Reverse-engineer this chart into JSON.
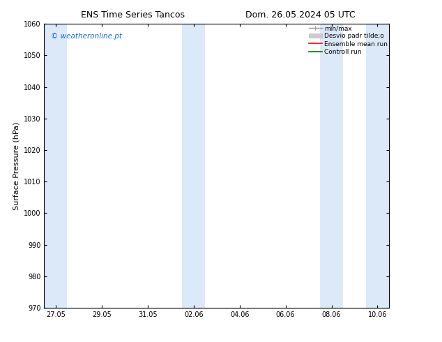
{
  "title_left": "ENS Time Series Tancos",
  "title_right": "Dom. 26.05.2024 05 UTC",
  "ylabel": "Surface Pressure (hPa)",
  "ylim": [
    970,
    1060
  ],
  "yticks": [
    970,
    980,
    990,
    1000,
    1010,
    1020,
    1030,
    1040,
    1050,
    1060
  ],
  "xlabel_ticks": [
    "27.05",
    "29.05",
    "31.05",
    "02.06",
    "04.06",
    "06.06",
    "08.06",
    "10.06"
  ],
  "x_tick_positions": [
    0,
    2,
    4,
    6,
    8,
    10,
    12,
    14
  ],
  "xlim": [
    -0.5,
    14.5
  ],
  "watermark": "© weatheronline.pt",
  "watermark_color": "#1a6ec7",
  "bg_color": "#ffffff",
  "plot_bg_color": "#ffffff",
  "shaded_bands": [
    {
      "x_start": -0.5,
      "x_end": 0.5
    },
    {
      "x_start": 5.5,
      "x_end": 6.5
    },
    {
      "x_start": 11.5,
      "x_end": 12.5
    },
    {
      "x_start": 13.5,
      "x_end": 14.5
    }
  ],
  "shade_color": "#dce9f8",
  "legend_labels": [
    "min/max",
    "Desvio padr tilde;o",
    "Ensemble mean run",
    "Controll run"
  ],
  "legend_colors": [
    "#999999",
    "#cccccc",
    "#ff0000",
    "#007700"
  ],
  "title_fontsize": 9,
  "tick_fontsize": 7,
  "ylabel_fontsize": 8
}
